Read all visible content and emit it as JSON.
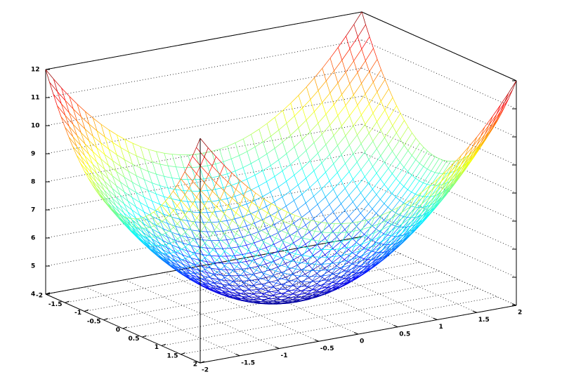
{
  "chart_data": {
    "type": "surface",
    "function": "z = x^2 + y^2 + 4",
    "x": [
      -2,
      -1.9,
      -1.8,
      -1.7,
      -1.6,
      -1.5,
      -1.4,
      -1.3,
      -1.2,
      -1.1,
      -1,
      -0.9,
      -0.8,
      -0.7,
      -0.6,
      -0.5,
      -0.4,
      -0.3,
      -0.2,
      -0.1,
      0,
      0.1,
      0.2,
      0.3,
      0.4,
      0.5,
      0.6,
      0.7,
      0.8,
      0.9,
      1,
      1.1,
      1.2,
      1.3,
      1.4,
      1.5,
      1.6,
      1.7,
      1.8,
      1.9,
      2
    ],
    "y": [
      -2,
      -1.9,
      -1.8,
      -1.7,
      -1.6,
      -1.5,
      -1.4,
      -1.3,
      -1.2,
      -1.1,
      -1,
      -0.9,
      -0.8,
      -0.7,
      -0.6,
      -0.5,
      -0.4,
      -0.3,
      -0.2,
      -0.1,
      0,
      0.1,
      0.2,
      0.3,
      0.4,
      0.5,
      0.6,
      0.7,
      0.8,
      0.9,
      1,
      1.1,
      1.2,
      1.3,
      1.4,
      1.5,
      1.6,
      1.7,
      1.8,
      1.9,
      2
    ],
    "xlim": [
      -2,
      2
    ],
    "ylim": [
      -2,
      2
    ],
    "zlim": [
      4,
      12
    ],
    "x_ticks": [
      "-2",
      "-1.5",
      "-1",
      "-0.5",
      "0",
      "0.5",
      "1",
      "1.5",
      "2"
    ],
    "y_ticks": [
      "-2",
      "-1.5",
      "-1",
      "-0.5",
      "0",
      "0.5",
      "1",
      "1.5",
      "2"
    ],
    "z_ticks": [
      "4",
      "5",
      "6",
      "7",
      "8",
      "9",
      "10",
      "11",
      "12"
    ],
    "title": "",
    "xlabel": "",
    "ylabel": "",
    "zlabel": "",
    "grid": true,
    "colormap": "jet",
    "colors": {
      "background": "#ffffff",
      "axes": "#000000"
    }
  }
}
